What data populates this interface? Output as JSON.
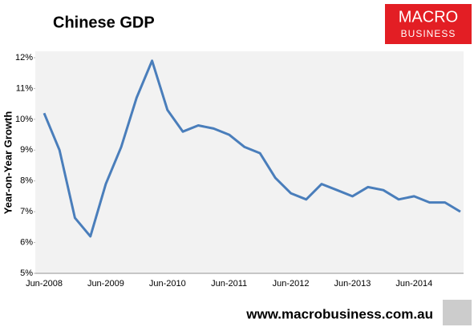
{
  "chart_data": {
    "type": "line",
    "title": "Chinese GDP",
    "y_label": "Year-on-Year Growth",
    "logo": {
      "line1": "MACRO",
      "line2": "BUSINESS"
    },
    "footer": "www.macrobusiness.com.au",
    "categories": [
      "Jun-2008",
      null,
      null,
      null,
      "Jun-2009",
      null,
      null,
      null,
      "Jun-2010",
      null,
      null,
      null,
      "Jun-2011",
      null,
      null,
      null,
      "Jun-2012",
      null,
      null,
      null,
      "Jun-2013",
      null,
      null,
      null,
      "Jun-2014",
      null,
      null,
      null
    ],
    "series": [
      {
        "name": "Chinese GDP",
        "color": "#4a7ebb",
        "values": [
          10.2,
          9.0,
          6.8,
          6.2,
          7.9,
          9.1,
          10.7,
          11.9,
          10.3,
          9.6,
          9.8,
          9.7,
          9.5,
          9.1,
          8.9,
          8.1,
          7.6,
          7.4,
          7.9,
          7.7,
          7.5,
          7.8,
          7.7,
          7.4,
          7.5,
          7.3,
          7.3,
          7.0
        ]
      }
    ],
    "ylim": [
      5,
      12
    ],
    "yticks": [
      {
        "value": 5,
        "label": "5%"
      },
      {
        "value": 6,
        "label": "6%"
      },
      {
        "value": 7,
        "label": "7%"
      },
      {
        "value": 8,
        "label": "8%"
      },
      {
        "value": 9,
        "label": "9%"
      },
      {
        "value": 10,
        "label": "10%"
      },
      {
        "value": 11,
        "label": "11%"
      },
      {
        "value": 12,
        "label": "12%"
      }
    ],
    "grid": false
  }
}
